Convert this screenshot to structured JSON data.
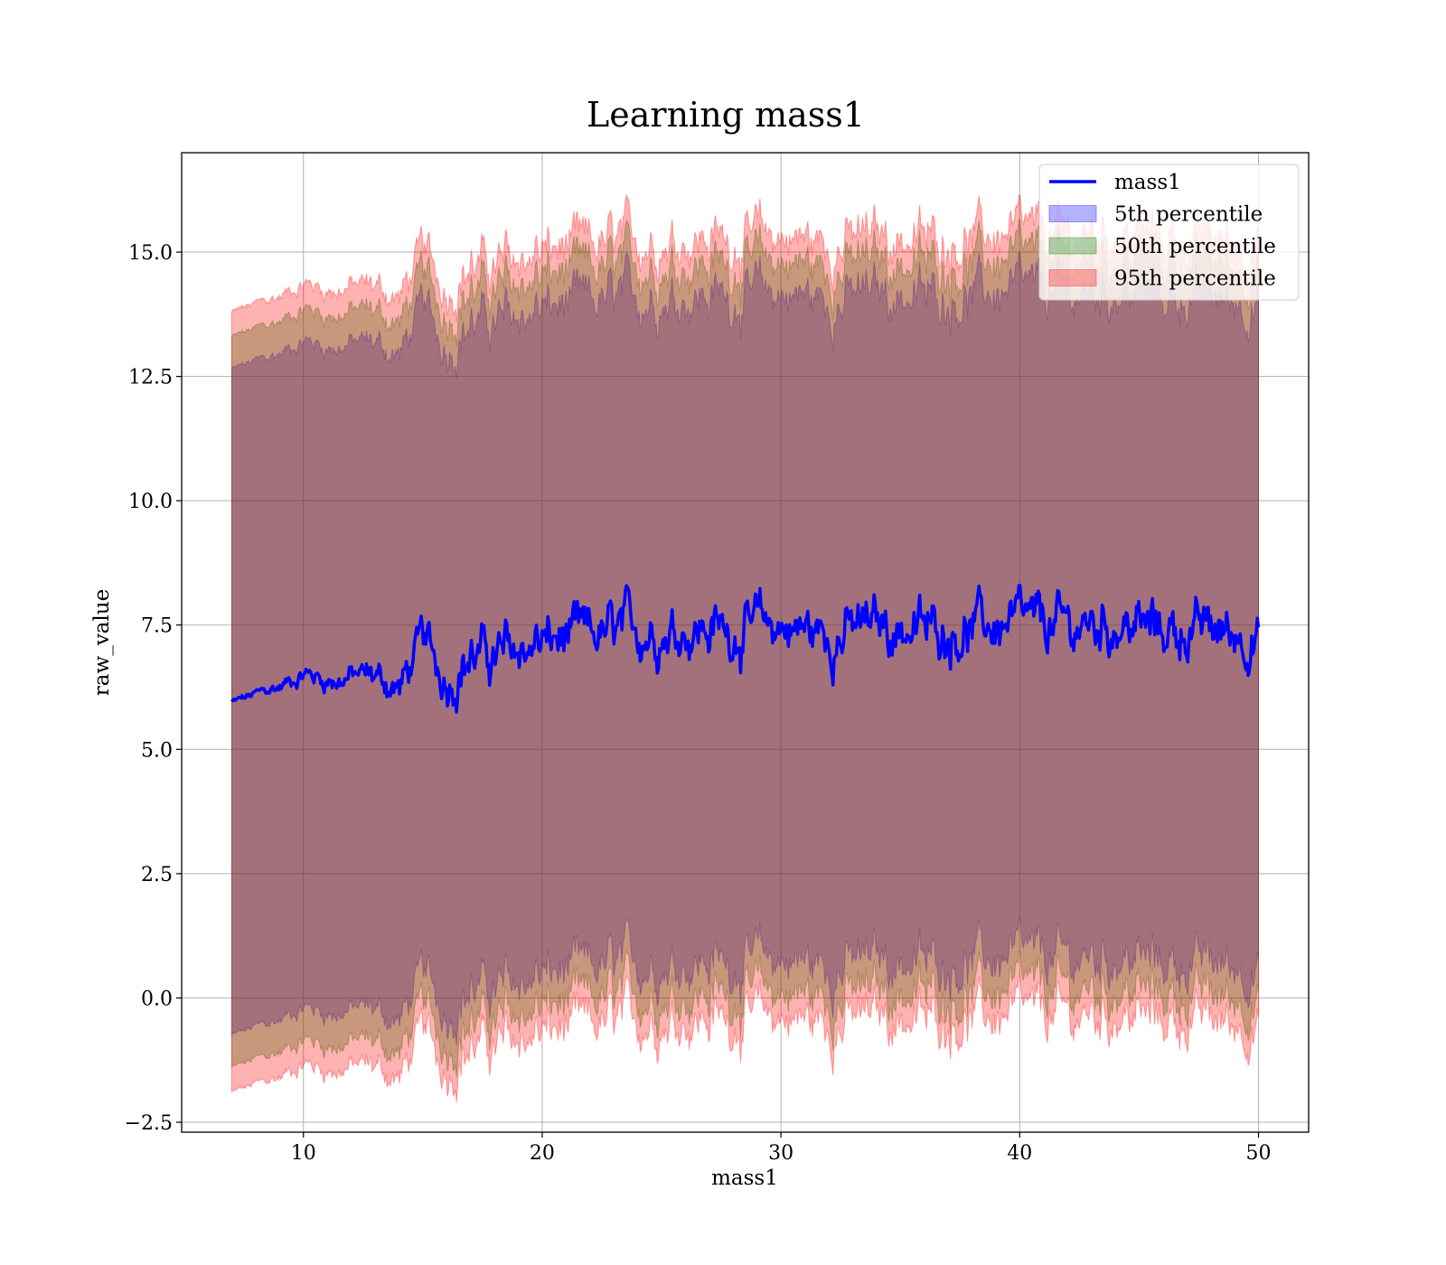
{
  "chart_data": {
    "type": "area",
    "title": "Learning mass1",
    "xlabel": "mass1",
    "ylabel": "raw_value",
    "xlim": [
      4.9,
      52.1
    ],
    "ylim": [
      -2.7,
      17.0
    ],
    "xticks": [
      10,
      20,
      30,
      40,
      50
    ],
    "xtick_labels": [
      "10",
      "20",
      "30",
      "40",
      "50"
    ],
    "yticks": [
      -2.5,
      0.0,
      2.5,
      5.0,
      7.5,
      10.0,
      12.5,
      15.0
    ],
    "ytick_labels": [
      "−2.5",
      "0.0",
      "2.5",
      "5.0",
      "7.5",
      "10.0",
      "12.5",
      "15.0"
    ],
    "grid": true,
    "legend_position": "top-right",
    "x_range": [
      7.0,
      50.0
    ],
    "series": [
      {
        "name": "mass1",
        "kind": "line",
        "color": "#0000ff",
        "x": [
          7,
          8,
          9,
          10,
          11,
          12,
          13,
          14,
          15,
          16,
          17,
          18,
          19,
          20,
          22,
          24,
          26,
          28,
          30,
          32,
          34,
          36,
          38,
          40,
          42,
          44,
          46,
          48,
          50
        ],
        "values": [
          5.95,
          6.1,
          6.25,
          6.55,
          6.4,
          6.45,
          6.5,
          6.2,
          7.2,
          6.4,
          6.9,
          6.85,
          7.0,
          7.15,
          7.25,
          7.4,
          7.45,
          7.4,
          7.5,
          7.3,
          7.5,
          7.4,
          7.45,
          7.5,
          7.45,
          7.55,
          7.4,
          7.4,
          7.3
        ]
      },
      {
        "name": "5th percentile",
        "kind": "band",
        "color": "#0000ff",
        "x": [
          7,
          8,
          9,
          10,
          11,
          12,
          13,
          14,
          15,
          16,
          17,
          18,
          19,
          20,
          22,
          24,
          26,
          28,
          30,
          32,
          34,
          36,
          38,
          40,
          42,
          44,
          46,
          48,
          50
        ],
        "lower": [
          -0.75,
          -0.6,
          -0.45,
          -0.15,
          -0.3,
          -0.25,
          -0.2,
          -0.5,
          0.5,
          -0.3,
          0.2,
          0.15,
          0.3,
          0.45,
          0.55,
          0.7,
          0.75,
          0.7,
          0.8,
          0.6,
          0.8,
          0.7,
          0.75,
          0.8,
          0.75,
          0.85,
          0.7,
          0.7,
          0.6
        ],
        "upper": [
          12.65,
          12.8,
          12.95,
          13.25,
          13.1,
          13.15,
          13.2,
          12.9,
          13.9,
          13.1,
          13.6,
          13.55,
          13.7,
          13.85,
          13.95,
          14.1,
          14.15,
          14.1,
          14.2,
          14.0,
          14.2,
          14.1,
          14.15,
          14.2,
          14.15,
          14.25,
          14.1,
          14.1,
          14.0
        ]
      },
      {
        "name": "50th percentile",
        "kind": "band",
        "color": "#008000",
        "x": [
          7,
          8,
          9,
          10,
          11,
          12,
          13,
          14,
          15,
          16,
          17,
          18,
          19,
          20,
          22,
          24,
          26,
          28,
          30,
          32,
          34,
          36,
          38,
          40,
          42,
          44,
          46,
          48,
          50
        ],
        "lower": [
          -1.4,
          -1.25,
          -1.1,
          -0.8,
          -0.95,
          -0.9,
          -0.85,
          -1.15,
          -0.15,
          -0.95,
          -0.45,
          -0.5,
          -0.35,
          -0.2,
          -0.1,
          0.05,
          0.1,
          0.05,
          0.15,
          -0.05,
          0.15,
          0.05,
          0.1,
          0.15,
          0.1,
          0.2,
          0.05,
          0.05,
          -0.05
        ],
        "upper": [
          13.3,
          13.45,
          13.6,
          13.9,
          13.75,
          13.8,
          13.85,
          13.55,
          14.55,
          13.75,
          14.25,
          14.2,
          14.35,
          14.5,
          14.6,
          14.75,
          14.8,
          14.75,
          14.85,
          14.65,
          14.85,
          14.75,
          14.8,
          14.85,
          14.8,
          14.9,
          14.75,
          14.75,
          14.65
        ]
      },
      {
        "name": "95th percentile",
        "kind": "band",
        "color": "#ff0000",
        "x": [
          7,
          8,
          9,
          10,
          11,
          12,
          13,
          14,
          15,
          16,
          17,
          18,
          19,
          20,
          22,
          24,
          26,
          28,
          30,
          32,
          34,
          36,
          38,
          40,
          42,
          44,
          46,
          48,
          50
        ],
        "lower": [
          -1.9,
          -1.75,
          -1.6,
          -1.3,
          -1.45,
          -1.4,
          -1.35,
          -1.65,
          -0.65,
          -1.45,
          -0.95,
          -1.0,
          -0.85,
          -0.7,
          -0.6,
          -0.45,
          -0.4,
          -0.45,
          -0.35,
          -0.55,
          -0.35,
          -0.45,
          -0.4,
          -0.35,
          -0.4,
          -0.3,
          -0.45,
          -0.45,
          -0.55
        ],
        "upper": [
          13.8,
          13.95,
          14.1,
          14.4,
          14.25,
          14.3,
          14.35,
          14.05,
          15.05,
          14.25,
          14.75,
          14.7,
          14.85,
          15.0,
          15.1,
          15.25,
          15.3,
          15.25,
          15.35,
          15.15,
          15.35,
          15.25,
          15.3,
          15.35,
          15.3,
          15.4,
          15.25,
          15.25,
          15.15
        ]
      }
    ]
  }
}
